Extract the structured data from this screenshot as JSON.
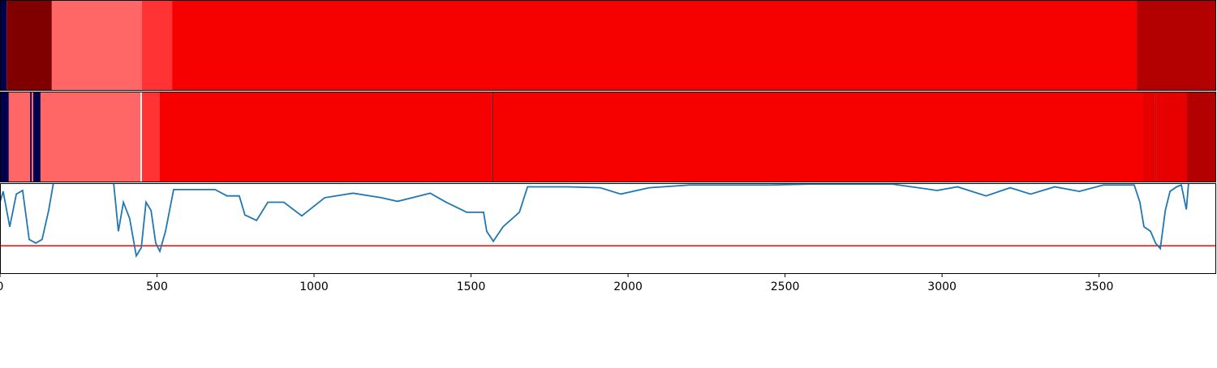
{
  "chart_data": [
    {
      "type": "bands",
      "xlim": [
        0,
        3873
      ],
      "segments": [
        {
          "start": 0,
          "end": 21,
          "color": "#00004f"
        },
        {
          "start": 21,
          "end": 165,
          "color": "#800000"
        },
        {
          "start": 165,
          "end": 452,
          "color": "#ff6666"
        },
        {
          "start": 452,
          "end": 548,
          "color": "#ff3333"
        },
        {
          "start": 548,
          "end": 3620,
          "color": "#f70000"
        },
        {
          "start": 3620,
          "end": 3873,
          "color": "#b30000"
        }
      ]
    },
    {
      "type": "bands",
      "xlim": [
        0,
        3873
      ],
      "segments": [
        {
          "start": 0,
          "end": 28,
          "color": "#00004f"
        },
        {
          "start": 28,
          "end": 96,
          "color": "#ff6666"
        },
        {
          "start": 96,
          "end": 101,
          "color": "#00004f"
        },
        {
          "start": 101,
          "end": 106,
          "color": "#ff6666"
        },
        {
          "start": 106,
          "end": 129,
          "color": "#00004f"
        },
        {
          "start": 129,
          "end": 447,
          "color": "#ff6666"
        },
        {
          "start": 447,
          "end": 452,
          "color": "#ffffff"
        },
        {
          "start": 452,
          "end": 509,
          "color": "#ff3333"
        },
        {
          "start": 509,
          "end": 1568,
          "color": "#f70000"
        },
        {
          "start": 1568,
          "end": 1571,
          "color": "#600000"
        },
        {
          "start": 1571,
          "end": 3638,
          "color": "#f70000"
        },
        {
          "start": 3638,
          "end": 3677,
          "color": "#e60000"
        },
        {
          "start": 3677,
          "end": 3682,
          "color": "#cc0000"
        },
        {
          "start": 3682,
          "end": 3780,
          "color": "#e60000"
        },
        {
          "start": 3780,
          "end": 3873,
          "color": "#b30000"
        }
      ]
    },
    {
      "type": "line",
      "xlim": [
        0,
        3873
      ],
      "ylim": [
        0,
        1
      ],
      "xticks": [
        0,
        500,
        1000,
        1500,
        2000,
        2500,
        3000,
        3500
      ],
      "x": [
        0,
        10,
        31,
        52,
        72,
        93,
        114,
        134,
        155,
        170,
        258,
        362,
        377,
        393,
        413,
        434,
        450,
        465,
        481,
        496,
        509,
        527,
        553,
        620,
        685,
        723,
        762,
        780,
        817,
        853,
        904,
        961,
        1034,
        1124,
        1214,
        1266,
        1370,
        1421,
        1486,
        1540,
        1550,
        1571,
        1602,
        1654,
        1680,
        1809,
        1912,
        1977,
        2067,
        2196,
        2455,
        2584,
        2842,
        2984,
        3049,
        3140,
        3217,
        3282,
        3359,
        3437,
        3514,
        3612,
        3630,
        3643,
        3664,
        3680,
        3695,
        3711,
        3726,
        3747,
        3762,
        3778,
        3785,
        3870
      ],
      "series": [
        {
          "color": "#1f77b4",
          "values": [
            0.79,
            0.91,
            0.52,
            0.88,
            0.92,
            0.38,
            0.34,
            0.38,
            0.7,
            1.0,
            1.0,
            1.0,
            0.47,
            0.79,
            0.61,
            0.2,
            0.29,
            0.79,
            0.7,
            0.34,
            0.25,
            0.47,
            0.93,
            0.93,
            0.93,
            0.86,
            0.86,
            0.65,
            0.59,
            0.79,
            0.79,
            0.64,
            0.84,
            0.89,
            0.84,
            0.8,
            0.89,
            0.79,
            0.68,
            0.68,
            0.47,
            0.36,
            0.52,
            0.68,
            0.96,
            0.96,
            0.95,
            0.88,
            0.95,
            0.98,
            0.98,
            0.99,
            0.99,
            0.92,
            0.96,
            0.86,
            0.95,
            0.88,
            0.96,
            0.91,
            0.98,
            0.98,
            0.79,
            0.52,
            0.47,
            0.34,
            0.28,
            0.7,
            0.91,
            0.96,
            0.98,
            0.71,
            1.0,
            1.0
          ]
        }
      ],
      "hline": {
        "value": 0.31,
        "color": "#ff0000"
      }
    }
  ]
}
